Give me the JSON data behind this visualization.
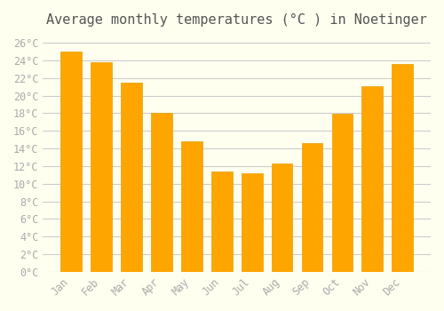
{
  "title": "Average monthly temperatures (°C ) in Noetinger",
  "months": [
    "Jan",
    "Feb",
    "Mar",
    "Apr",
    "May",
    "Jun",
    "Jul",
    "Aug",
    "Sep",
    "Oct",
    "Nov",
    "Dec"
  ],
  "values": [
    25.0,
    23.8,
    21.5,
    18.0,
    14.8,
    11.4,
    11.2,
    12.3,
    14.6,
    17.9,
    21.1,
    23.6
  ],
  "bar_color": "#FFA500",
  "bar_edge_color": "#E8A000",
  "background_color": "#FFFFF0",
  "grid_color": "#CCCCCC",
  "ytick_labels": [
    "0°C",
    "2°C",
    "4°C",
    "6°C",
    "8°C",
    "10°C",
    "12°C",
    "14°C",
    "16°C",
    "18°C",
    "20°C",
    "22°C",
    "24°C",
    "26°C"
  ],
  "ytick_values": [
    0,
    2,
    4,
    6,
    8,
    10,
    12,
    14,
    16,
    18,
    20,
    22,
    24,
    26
  ],
  "ylim": [
    0,
    27
  ],
  "title_fontsize": 11,
  "tick_fontsize": 8.5,
  "tick_font_color": "#AAAAAA",
  "title_font_color": "#555555"
}
